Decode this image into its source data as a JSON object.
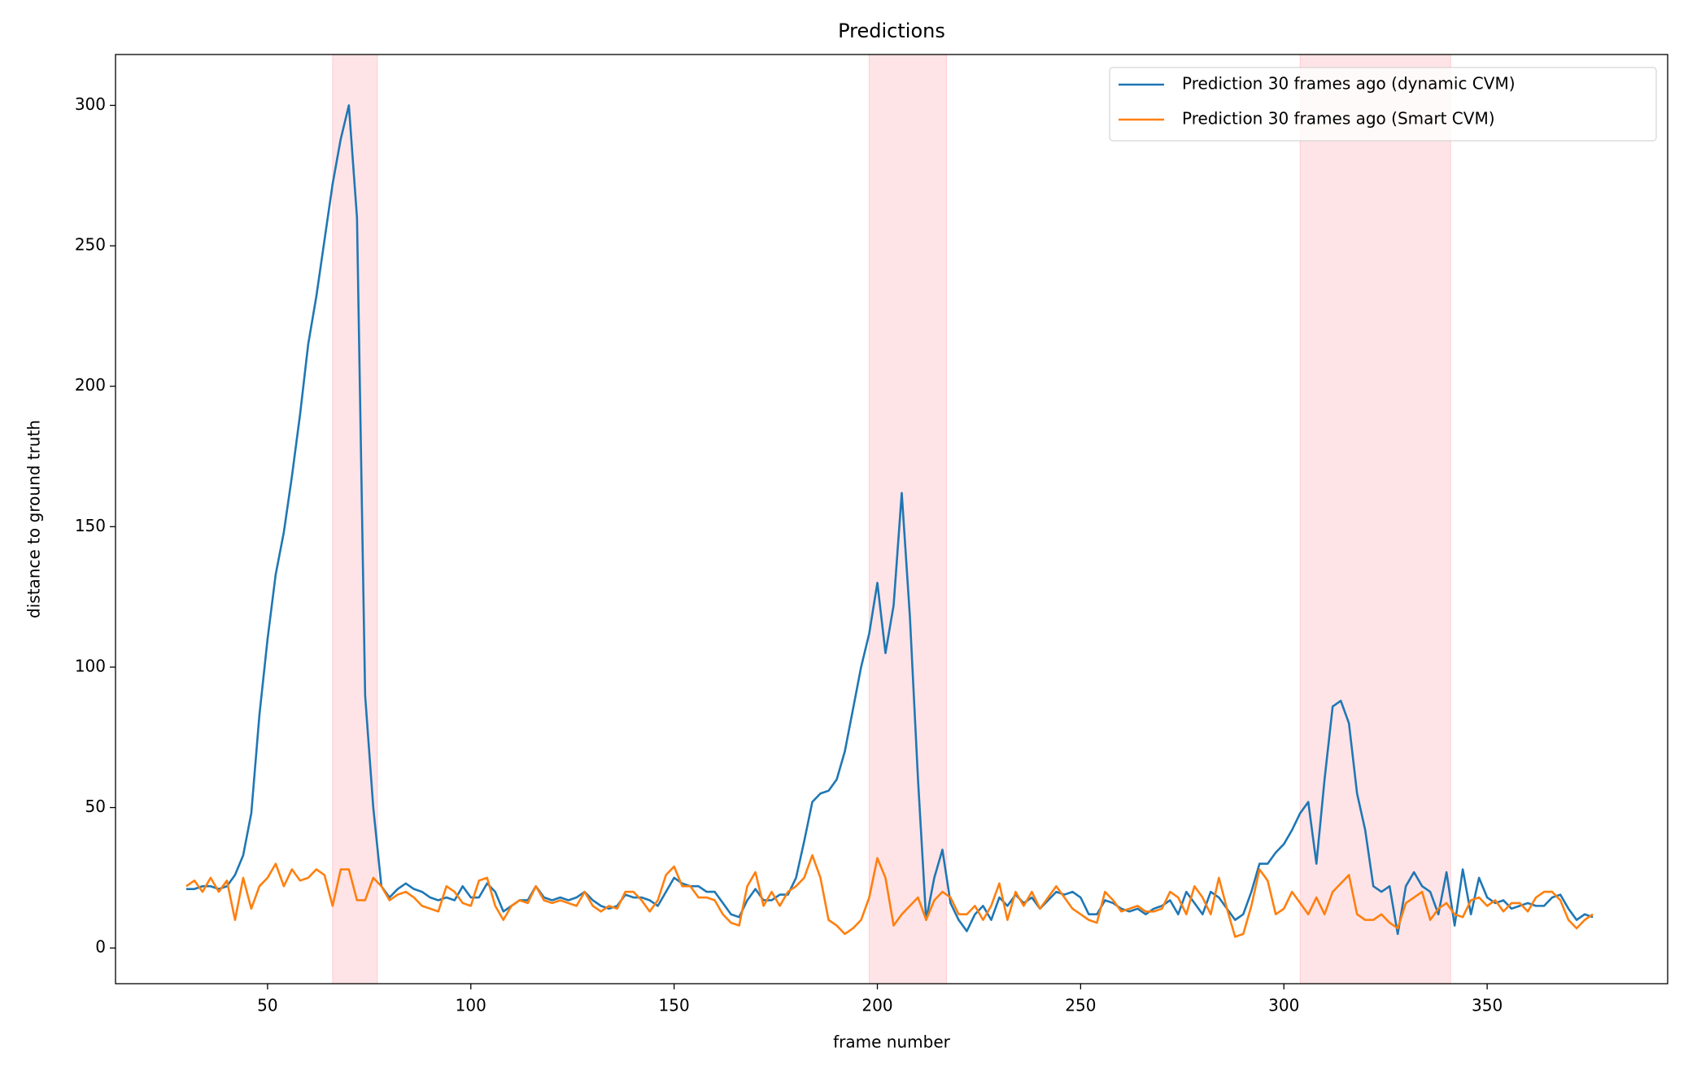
{
  "chart_data": {
    "type": "line",
    "title": "Predictions",
    "x_label": "frame number",
    "y_label": "distance to ground truth",
    "xlim": [
      12.6,
      394.4
    ],
    "ylim": [
      -12.7,
      318.1
    ],
    "xticks": [
      50,
      100,
      150,
      200,
      250,
      300,
      350
    ],
    "yticks": [
      0,
      50,
      100,
      150,
      200,
      250,
      300
    ],
    "grid": false,
    "legend": "upper right",
    "spans": [
      [
        66,
        77
      ],
      [
        198,
        217
      ],
      [
        304,
        341
      ]
    ],
    "span_color": "#ffb3ba",
    "x": [
      30,
      32,
      34,
      36,
      38,
      40,
      42,
      44,
      46,
      48,
      50,
      52,
      54,
      56,
      58,
      60,
      62,
      64,
      66,
      68,
      70,
      72,
      74,
      76,
      78,
      80,
      82,
      84,
      86,
      88,
      90,
      92,
      94,
      96,
      98,
      100,
      102,
      104,
      106,
      108,
      110,
      112,
      114,
      116,
      118,
      120,
      122,
      124,
      126,
      128,
      130,
      132,
      134,
      136,
      138,
      140,
      142,
      144,
      146,
      148,
      150,
      152,
      154,
      156,
      158,
      160,
      162,
      164,
      166,
      168,
      170,
      172,
      174,
      176,
      178,
      180,
      182,
      184,
      186,
      188,
      190,
      192,
      194,
      196,
      198,
      200,
      202,
      204,
      206,
      208,
      210,
      212,
      214,
      216,
      218,
      220,
      222,
      224,
      226,
      228,
      230,
      232,
      234,
      236,
      238,
      240,
      242,
      244,
      246,
      248,
      250,
      252,
      254,
      256,
      258,
      260,
      262,
      264,
      266,
      268,
      270,
      272,
      274,
      276,
      278,
      280,
      282,
      284,
      286,
      288,
      290,
      292,
      294,
      296,
      298,
      300,
      302,
      304,
      306,
      308,
      310,
      312,
      314,
      316,
      318,
      320,
      322,
      324,
      326,
      328,
      330,
      332,
      334,
      336,
      338,
      340,
      342,
      344,
      346,
      348,
      350,
      352,
      354,
      356,
      358,
      360,
      362,
      364,
      366,
      368,
      370,
      372,
      374,
      376
    ],
    "series": [
      {
        "name": "Prediction 30 frames ago (dynamic CVM)",
        "color": "#1f77b4",
        "values": [
          21,
          21,
          22,
          22,
          21,
          22,
          26,
          33,
          48,
          83,
          110,
          133,
          148,
          168,
          190,
          215,
          232,
          252,
          272,
          288,
          300,
          260,
          90,
          50,
          22,
          18,
          21,
          23,
          21,
          20,
          18,
          17,
          18,
          17,
          22,
          18,
          18,
          23,
          20,
          13,
          15,
          17,
          17,
          22,
          18,
          17,
          18,
          17,
          18,
          20,
          17,
          15,
          14,
          15,
          19,
          18,
          18,
          17,
          15,
          20,
          25,
          23,
          22,
          22,
          20,
          20,
          16,
          12,
          11,
          17,
          21,
          17,
          17,
          19,
          19,
          25,
          38,
          52,
          55,
          56,
          60,
          70,
          85,
          100,
          112,
          130,
          105,
          122,
          162,
          118,
          60,
          10,
          25,
          35,
          16,
          10,
          6,
          12,
          15,
          10,
          18,
          15,
          19,
          16,
          18,
          14,
          17,
          20,
          19,
          20,
          18,
          12,
          12,
          17,
          16,
          14,
          13,
          14,
          12,
          14,
          15,
          17,
          12,
          20,
          16,
          12,
          20,
          18,
          14,
          10,
          12,
          20,
          30,
          30,
          34,
          37,
          42,
          48,
          52,
          30,
          60,
          86,
          88,
          80,
          55,
          42,
          22,
          20,
          22,
          5,
          22,
          27,
          22,
          20,
          12,
          27,
          8,
          28,
          12,
          25,
          18,
          16,
          17,
          14,
          15,
          16,
          15,
          15,
          18,
          19,
          14,
          10,
          12,
          11
        ]
      },
      {
        "name": "Prediction 30 frames ago (Smart CVM)",
        "color": "#ff7f0e",
        "values": [
          22,
          24,
          20,
          25,
          20,
          24,
          10,
          25,
          14,
          22,
          25,
          30,
          22,
          28,
          24,
          25,
          28,
          26,
          15,
          28,
          28,
          17,
          17,
          25,
          22,
          17,
          19,
          20,
          18,
          15,
          14,
          13,
          22,
          20,
          16,
          15,
          24,
          25,
          15,
          10,
          15,
          17,
          16,
          22,
          17,
          16,
          17,
          16,
          15,
          20,
          15,
          13,
          15,
          14,
          20,
          20,
          17,
          13,
          17,
          26,
          29,
          22,
          22,
          18,
          18,
          17,
          12,
          9,
          8,
          22,
          27,
          15,
          20,
          15,
          20,
          22,
          25,
          33,
          25,
          10,
          8,
          5,
          7,
          10,
          18,
          32,
          25,
          8,
          12,
          15,
          18,
          10,
          17,
          20,
          18,
          12,
          12,
          15,
          10,
          15,
          23,
          10,
          20,
          15,
          20,
          14,
          18,
          22,
          18,
          14,
          12,
          10,
          9,
          20,
          17,
          13,
          14,
          15,
          13,
          13,
          14,
          20,
          18,
          12,
          22,
          18,
          12,
          25,
          14,
          4,
          5,
          15,
          28,
          24,
          12,
          14,
          20,
          16,
          12,
          18,
          12,
          20,
          23,
          26,
          12,
          10,
          10,
          12,
          9,
          7,
          16,
          18,
          20,
          10,
          14,
          16,
          12,
          11,
          17,
          18,
          15,
          17,
          13,
          16,
          16,
          13,
          18,
          20,
          20,
          17,
          10,
          7,
          10,
          12
        ]
      }
    ]
  }
}
